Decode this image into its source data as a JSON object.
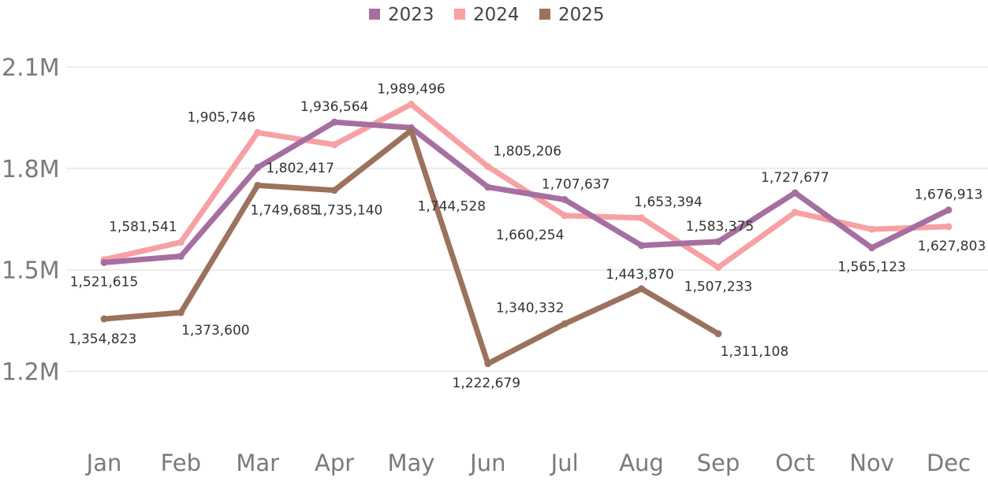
{
  "chart_data": {
    "type": "line",
    "categories": [
      "Jan",
      "Feb",
      "Mar",
      "Apr",
      "May",
      "Jun",
      "Jul",
      "Aug",
      "Sep",
      "Oct",
      "Nov",
      "Dec"
    ],
    "ylim": [
      1050000,
      2200000
    ],
    "y_ticks": [
      1200000,
      1500000,
      1800000,
      2100000
    ],
    "y_tick_labels": [
      "1.2M",
      "1.5M",
      "1.8M",
      "2.1M"
    ],
    "grid": true,
    "legend_position": "top-center",
    "series": [
      {
        "name": "2023",
        "color": "#a66fa0",
        "values": [
          1521615,
          1540000,
          1802417,
          1936564,
          1920000,
          1744528,
          1707637,
          1572000,
          1583375,
          1727677,
          1565123,
          1676913
        ],
        "labels": [
          "1,521,615",
          "",
          "1,802,417",
          "1,936,564",
          "",
          "1,744,528",
          "1,707,637",
          "",
          "1,583,375",
          "1,727,677",
          "1,565,123",
          "1,676,913"
        ]
      },
      {
        "name": "2024",
        "color": "#f7a1a4",
        "values": [
          1530000,
          1581541,
          1905746,
          1870000,
          1989496,
          1805206,
          1660254,
          1653394,
          1507233,
          1670000,
          1620000,
          1627803
        ],
        "labels": [
          "",
          "1,581,541",
          "1,905,746",
          "",
          "1,989,496",
          "1,805,206",
          "1,660,254",
          "1,653,394",
          "1,507,233",
          "",
          "",
          "1,627,803"
        ]
      },
      {
        "name": "2025",
        "color": "#9c725c",
        "values": [
          1354823,
          1373600,
          1749685,
          1735140,
          1912000,
          1222679,
          1340332,
          1443870,
          1311108,
          null,
          null,
          null
        ],
        "labels": [
          "1,354,823",
          "1,373,600",
          "1,749,685",
          "1,735,140",
          "",
          "1,222,679",
          "1,340,332",
          "1,443,870",
          "1,311,108",
          "",
          "",
          ""
        ]
      }
    ]
  }
}
